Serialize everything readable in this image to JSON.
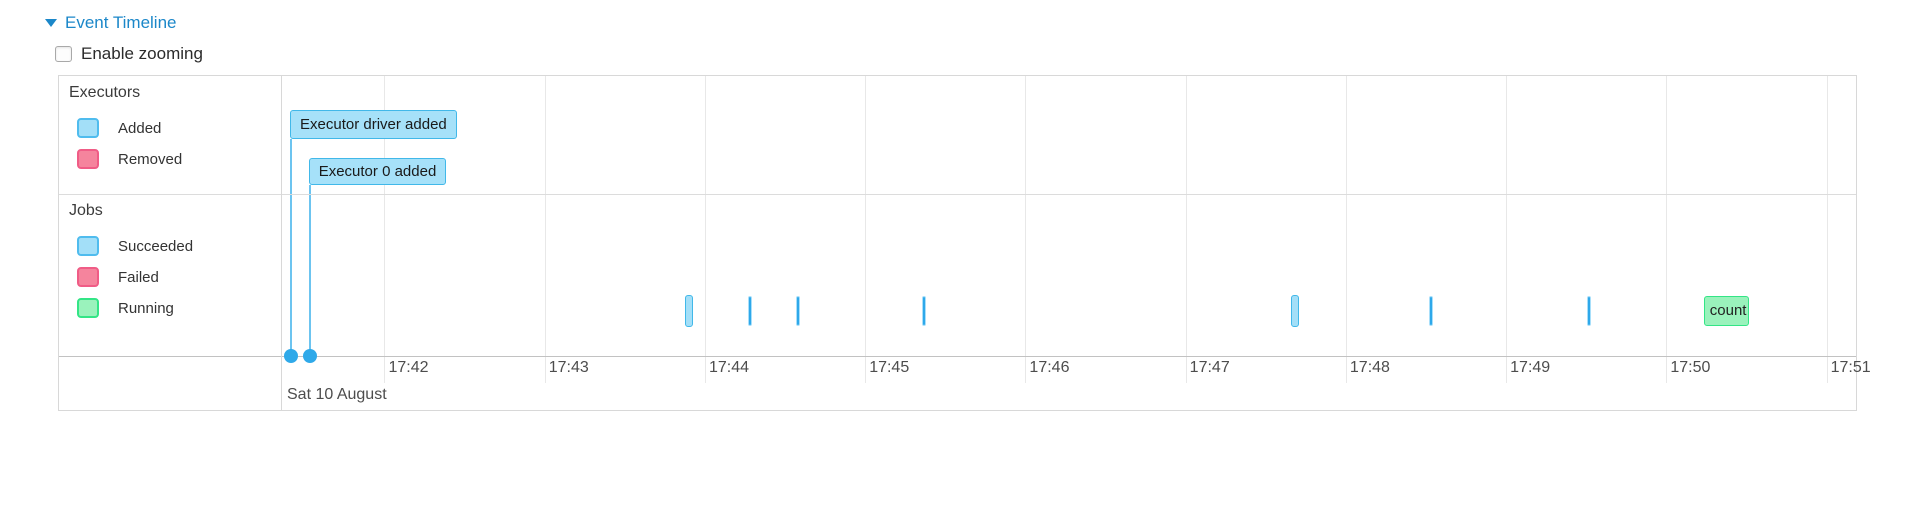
{
  "header": {
    "title": "Event Timeline",
    "enable_zooming_label": "Enable zooming",
    "zooming_checked": false
  },
  "timeline": {
    "legend_groups": [
      {
        "name": "Executors",
        "entries": [
          {
            "label": "Added",
            "color_key": "blue"
          },
          {
            "label": "Removed",
            "color_key": "pink"
          }
        ]
      },
      {
        "name": "Jobs",
        "entries": [
          {
            "label": "Succeeded",
            "color_key": "blue"
          },
          {
            "label": "Failed",
            "color_key": "pink"
          },
          {
            "label": "Running",
            "color_key": "green"
          }
        ]
      }
    ],
    "axis": {
      "view_start": "17:41:22",
      "view_end": "17:51:11",
      "minor_ticks": [
        "17:42",
        "17:43",
        "17:44",
        "17:45",
        "17:46",
        "17:47",
        "17:48",
        "17:49",
        "17:50",
        "17:51"
      ],
      "major_label": "Sat 10 August"
    },
    "executor_events": [
      {
        "label": "Executor driver added",
        "time": "17:41:25",
        "status": "added"
      },
      {
        "label": "Executor 0 added",
        "time": "17:41:32",
        "status": "added"
      }
    ],
    "job_events": [
      {
        "start": "17:43:54",
        "end": "17:43:57",
        "status": "succeeded",
        "shape": "bar",
        "label": ""
      },
      {
        "start": "17:44:17",
        "end": "17:44:17",
        "status": "succeeded",
        "shape": "tick",
        "label": ""
      },
      {
        "start": "17:44:35",
        "end": "17:44:35",
        "status": "succeeded",
        "shape": "tick",
        "label": ""
      },
      {
        "start": "17:45:22",
        "end": "17:45:22",
        "status": "succeeded",
        "shape": "tick",
        "label": ""
      },
      {
        "start": "17:47:41",
        "end": "17:47:44",
        "status": "succeeded",
        "shape": "bar",
        "label": ""
      },
      {
        "start": "17:48:32",
        "end": "17:48:32",
        "status": "succeeded",
        "shape": "tick",
        "label": ""
      },
      {
        "start": "17:49:31",
        "end": "17:49:31",
        "status": "succeeded",
        "shape": "tick",
        "label": ""
      },
      {
        "start": "17:50:14",
        "end": "17:50:31",
        "status": "running",
        "shape": "box",
        "label": "count"
      }
    ],
    "colors": {
      "blue_fill": "#A3DFF8",
      "blue_border": "#41B8E9",
      "pink_fill": "#F5849D",
      "pink_border": "#F05C86",
      "green_fill": "#9AF2BC",
      "green_border": "#33E586",
      "stem_blue": "#6CC4F0",
      "dot_blue": "#2FA9E9",
      "link_blue": "#1B87C9"
    }
  }
}
